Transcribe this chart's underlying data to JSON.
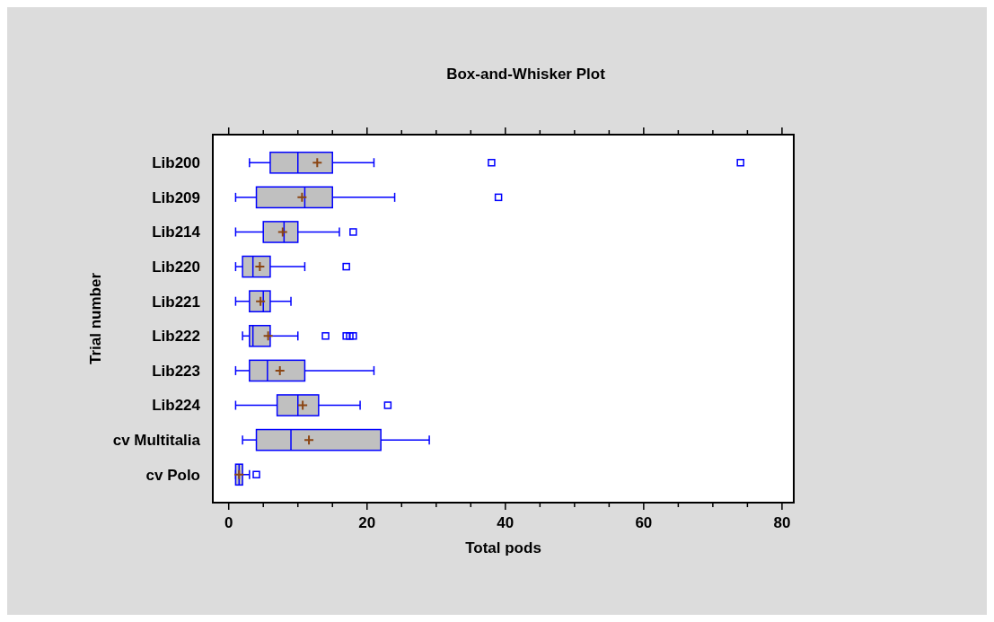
{
  "chart_data": {
    "type": "box",
    "title": "Box-and-Whisker Plot",
    "xlabel": "Total pods",
    "ylabel": "Trial number",
    "orientation": "horizontal",
    "color": "#c0c0c0",
    "categories": [
      "Lib200",
      "Lib209",
      "Lib214",
      "Lib220",
      "Lib221",
      "Lib222",
      "Lib223",
      "Lib224",
      "cv Multitalia",
      "cv Polo"
    ],
    "boxes": [
      {
        "low": 3,
        "q1": 6,
        "median": 10,
        "q3": 15,
        "high": 21,
        "mean": 12.8,
        "outliers": [
          38,
          74
        ]
      },
      {
        "low": 1,
        "q1": 4,
        "median": 11,
        "q3": 15,
        "high": 24,
        "mean": 10.6,
        "outliers": [
          39
        ]
      },
      {
        "low": 1,
        "q1": 5,
        "median": 8,
        "q3": 10,
        "high": 16,
        "mean": 7.8,
        "outliers": [
          18
        ]
      },
      {
        "low": 1,
        "q1": 2,
        "median": 3.5,
        "q3": 6,
        "high": 11,
        "mean": 4.5,
        "outliers": [
          17
        ]
      },
      {
        "low": 1,
        "q1": 3,
        "median": 5,
        "q3": 6,
        "high": 9,
        "mean": 4.6
      },
      {
        "low": 2,
        "q1": 3,
        "median": 3.5,
        "q3": 6,
        "high": 10,
        "mean": 5.7,
        "outliers": [
          14,
          17,
          17.5,
          18
        ]
      },
      {
        "low": 1,
        "q1": 3,
        "median": 5.6,
        "q3": 11,
        "high": 21,
        "mean": 7.4
      },
      {
        "low": 1,
        "q1": 7,
        "median": 10,
        "q3": 13,
        "high": 19,
        "mean": 10.7,
        "outliers": [
          23
        ]
      },
      {
        "low": 2,
        "q1": 4,
        "median": 9,
        "q3": 22,
        "high": 29,
        "mean": 11.6
      },
      {
        "low": 1,
        "q1": 1,
        "median": 1.5,
        "q3": 2,
        "high": 3,
        "mean": 1.5,
        "outliers": [
          4
        ]
      }
    ],
    "xlim": [
      -2.3,
      81.7
    ],
    "xticks": [
      0,
      {
        "value": 5,
        "label": null
      },
      {
        "value": 10,
        "label": null
      },
      {
        "value": 15,
        "label": null
      },
      20,
      {
        "value": 25,
        "label": null
      },
      {
        "value": 30,
        "label": null
      },
      {
        "value": 35,
        "label": null
      },
      40,
      {
        "value": 45,
        "label": null
      },
      {
        "value": 50,
        "label": null
      },
      {
        "value": 55,
        "label": null
      },
      60,
      {
        "value": 65,
        "label": null
      },
      {
        "value": 70,
        "label": null
      },
      {
        "value": 75,
        "label": null
      },
      80
    ],
    "grid": false
  }
}
